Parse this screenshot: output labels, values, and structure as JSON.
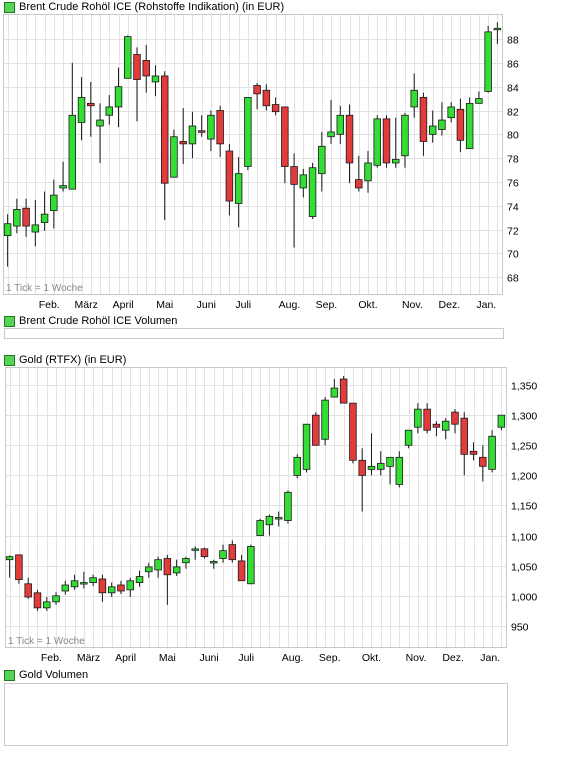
{
  "colors": {
    "up": "#33dd33",
    "down": "#e23b3b",
    "outline": "#1a1a1a",
    "grid": "#e2e2e2"
  },
  "chart_data": [
    {
      "type": "candlestick",
      "title": "Brent Crude Rohöl ICE (Rohstoffe Indikation) (in EUR)",
      "note": "1 Tick = 1 Woche",
      "yticks": [
        68,
        70,
        72,
        74,
        76,
        78,
        80,
        82,
        84,
        86,
        88
      ],
      "ylim": [
        66.6,
        90.1
      ],
      "x_labels": [
        "Feb.",
        "März",
        "April",
        "Mai",
        "Juni",
        "Juli",
        "Aug.",
        "Sep.",
        "Okt.",
        "Nov.",
        "Dez.",
        "Jan."
      ],
      "x_label_positions": [
        5,
        9,
        13,
        17.5,
        22,
        26,
        31,
        35,
        39.5,
        44.3,
        48.3,
        52.3
      ],
      "candles": [
        {
          "o": 71.5,
          "h": 73.3,
          "l": 68.9,
          "c": 72.5
        },
        {
          "o": 72.3,
          "h": 74.6,
          "l": 71.7,
          "c": 73.7
        },
        {
          "o": 73.8,
          "h": 74.6,
          "l": 71.4,
          "c": 72.3
        },
        {
          "o": 71.8,
          "h": 74.5,
          "l": 70.6,
          "c": 72.4
        },
        {
          "o": 72.6,
          "h": 75.2,
          "l": 71.9,
          "c": 73.3
        },
        {
          "o": 73.6,
          "h": 76.2,
          "l": 72.1,
          "c": 74.9
        },
        {
          "o": 75.5,
          "h": 77.7,
          "l": 75.2,
          "c": 75.7
        },
        {
          "o": 75.4,
          "h": 86.0,
          "l": 75.4,
          "c": 81.6
        },
        {
          "o": 81.0,
          "h": 84.8,
          "l": 79.5,
          "c": 83.1
        },
        {
          "o": 82.6,
          "h": 84.4,
          "l": 79.8,
          "c": 82.4
        },
        {
          "o": 80.7,
          "h": 82.6,
          "l": 77.6,
          "c": 81.2
        },
        {
          "o": 81.6,
          "h": 83.3,
          "l": 80.8,
          "c": 82.3
        },
        {
          "o": 82.3,
          "h": 85.6,
          "l": 80.6,
          "c": 84.0
        },
        {
          "o": 84.7,
          "h": 88.3,
          "l": 84.7,
          "c": 88.2
        },
        {
          "o": 86.7,
          "h": 87.3,
          "l": 81.1,
          "c": 84.6
        },
        {
          "o": 86.2,
          "h": 87.5,
          "l": 83.5,
          "c": 84.9
        },
        {
          "o": 84.4,
          "h": 85.8,
          "l": 83.2,
          "c": 84.9
        },
        {
          "o": 84.9,
          "h": 85.3,
          "l": 72.8,
          "c": 75.9
        },
        {
          "o": 76.4,
          "h": 80.4,
          "l": 76.4,
          "c": 79.8
        },
        {
          "o": 79.4,
          "h": 82.2,
          "l": 77.5,
          "c": 79.2
        },
        {
          "o": 79.2,
          "h": 81.9,
          "l": 78.0,
          "c": 80.7
        },
        {
          "o": 80.3,
          "h": 81.6,
          "l": 79.8,
          "c": 80.2
        },
        {
          "o": 79.6,
          "h": 82.0,
          "l": 78.6,
          "c": 81.6
        },
        {
          "o": 82.0,
          "h": 82.4,
          "l": 78.1,
          "c": 79.2
        },
        {
          "o": 78.6,
          "h": 79.2,
          "l": 73.2,
          "c": 74.4
        },
        {
          "o": 74.2,
          "h": 78.1,
          "l": 72.2,
          "c": 76.7
        },
        {
          "o": 77.3,
          "h": 83.1,
          "l": 77.0,
          "c": 83.1
        },
        {
          "o": 84.1,
          "h": 84.3,
          "l": 82.1,
          "c": 83.4
        },
        {
          "o": 83.7,
          "h": 84.2,
          "l": 82.0,
          "c": 82.4
        },
        {
          "o": 82.5,
          "h": 83.1,
          "l": 81.6,
          "c": 81.9
        },
        {
          "o": 82.3,
          "h": 82.3,
          "l": 75.9,
          "c": 77.3
        },
        {
          "o": 77.3,
          "h": 78.4,
          "l": 70.5,
          "c": 75.8
        },
        {
          "o": 75.5,
          "h": 77.1,
          "l": 74.7,
          "c": 76.6
        },
        {
          "o": 73.1,
          "h": 77.6,
          "l": 72.9,
          "c": 77.2
        },
        {
          "o": 76.7,
          "h": 80.2,
          "l": 75.2,
          "c": 79.0
        },
        {
          "o": 79.8,
          "h": 82.9,
          "l": 79.2,
          "c": 80.2
        },
        {
          "o": 80.0,
          "h": 82.4,
          "l": 79.2,
          "c": 81.6
        },
        {
          "o": 81.6,
          "h": 82.5,
          "l": 75.9,
          "c": 77.6
        },
        {
          "o": 76.2,
          "h": 78.2,
          "l": 75.2,
          "c": 75.5
        },
        {
          "o": 76.1,
          "h": 78.6,
          "l": 75.1,
          "c": 77.6
        },
        {
          "o": 77.4,
          "h": 81.6,
          "l": 77.2,
          "c": 81.3
        },
        {
          "o": 81.3,
          "h": 81.6,
          "l": 77.2,
          "c": 77.6
        },
        {
          "o": 77.6,
          "h": 81.4,
          "l": 77.2,
          "c": 77.9
        },
        {
          "o": 78.2,
          "h": 81.8,
          "l": 77.2,
          "c": 81.6
        },
        {
          "o": 82.3,
          "h": 85.1,
          "l": 81.4,
          "c": 83.7
        },
        {
          "o": 83.1,
          "h": 83.5,
          "l": 78.2,
          "c": 79.4
        },
        {
          "o": 80.0,
          "h": 82.0,
          "l": 79.3,
          "c": 80.7
        },
        {
          "o": 80.4,
          "h": 82.7,
          "l": 79.9,
          "c": 81.2
        },
        {
          "o": 81.4,
          "h": 82.7,
          "l": 81.0,
          "c": 82.3
        },
        {
          "o": 82.1,
          "h": 83.0,
          "l": 78.5,
          "c": 79.5
        },
        {
          "o": 78.8,
          "h": 83.1,
          "l": 78.8,
          "c": 82.6
        },
        {
          "o": 82.6,
          "h": 83.6,
          "l": 82.6,
          "c": 83.0
        },
        {
          "o": 83.6,
          "h": 89.1,
          "l": 83.5,
          "c": 88.6
        },
        {
          "o": 88.9,
          "h": 89.4,
          "l": 87.6,
          "c": 88.9
        }
      ]
    },
    {
      "type": "bar",
      "title": "Brent Crude Rohöl ICE Volumen",
      "values": []
    },
    {
      "type": "candlestick",
      "title": "Gold (RTFX) (in EUR)",
      "note": "1 Tick = 1 Woche",
      "yticks": [
        950,
        1000,
        1050,
        1100,
        1150,
        1200,
        1250,
        1300,
        1350
      ],
      "ylim": [
        915,
        1380
      ],
      "x_labels": [
        "Feb.",
        "März",
        "April",
        "Mai",
        "Juni",
        "Juli",
        "Aug.",
        "Sep.",
        "Okt.",
        "Nov.",
        "Dez.",
        "Jan."
      ],
      "x_label_positions": [
        5,
        9,
        13,
        17.5,
        22,
        26,
        31,
        35,
        39.5,
        44.3,
        48.3,
        52.3
      ],
      "candles": [
        {
          "o": 1060,
          "h": 1067,
          "l": 1030,
          "c": 1065
        },
        {
          "o": 1068,
          "h": 1068,
          "l": 1020,
          "c": 1027
        },
        {
          "o": 1020,
          "h": 1030,
          "l": 995,
          "c": 998
        },
        {
          "o": 1005,
          "h": 1010,
          "l": 975,
          "c": 980
        },
        {
          "o": 980,
          "h": 998,
          "l": 975,
          "c": 990
        },
        {
          "o": 990,
          "h": 1006,
          "l": 985,
          "c": 1000
        },
        {
          "o": 1008,
          "h": 1025,
          "l": 1002,
          "c": 1018
        },
        {
          "o": 1015,
          "h": 1035,
          "l": 1010,
          "c": 1025
        },
        {
          "o": 1020,
          "h": 1040,
          "l": 1012,
          "c": 1022
        },
        {
          "o": 1022,
          "h": 1035,
          "l": 1016,
          "c": 1030
        },
        {
          "o": 1028,
          "h": 1035,
          "l": 990,
          "c": 1005
        },
        {
          "o": 1005,
          "h": 1022,
          "l": 998,
          "c": 1015
        },
        {
          "o": 1018,
          "h": 1025,
          "l": 1003,
          "c": 1008
        },
        {
          "o": 1010,
          "h": 1030,
          "l": 998,
          "c": 1025
        },
        {
          "o": 1022,
          "h": 1042,
          "l": 1015,
          "c": 1032
        },
        {
          "o": 1040,
          "h": 1055,
          "l": 1030,
          "c": 1048
        },
        {
          "o": 1043,
          "h": 1065,
          "l": 1030,
          "c": 1060
        },
        {
          "o": 1062,
          "h": 1068,
          "l": 985,
          "c": 1035
        },
        {
          "o": 1038,
          "h": 1060,
          "l": 1033,
          "c": 1048
        },
        {
          "o": 1055,
          "h": 1065,
          "l": 1045,
          "c": 1062
        },
        {
          "o": 1078,
          "h": 1082,
          "l": 1060,
          "c": 1078
        },
        {
          "o": 1078,
          "h": 1080,
          "l": 1062,
          "c": 1065
        },
        {
          "o": 1057,
          "h": 1060,
          "l": 1045,
          "c": 1057
        },
        {
          "o": 1062,
          "h": 1085,
          "l": 1055,
          "c": 1075
        },
        {
          "o": 1085,
          "h": 1092,
          "l": 1055,
          "c": 1060
        },
        {
          "o": 1058,
          "h": 1068,
          "l": 1025,
          "c": 1025
        },
        {
          "o": 1020,
          "h": 1085,
          "l": 1020,
          "c": 1082
        },
        {
          "o": 1100,
          "h": 1128,
          "l": 1100,
          "c": 1125
        },
        {
          "o": 1118,
          "h": 1135,
          "l": 1100,
          "c": 1132
        },
        {
          "o": 1128,
          "h": 1140,
          "l": 1115,
          "c": 1130
        },
        {
          "o": 1125,
          "h": 1175,
          "l": 1120,
          "c": 1172
        },
        {
          "o": 1200,
          "h": 1235,
          "l": 1195,
          "c": 1230
        },
        {
          "o": 1210,
          "h": 1285,
          "l": 1205,
          "c": 1285
        },
        {
          "o": 1300,
          "h": 1305,
          "l": 1250,
          "c": 1250
        },
        {
          "o": 1260,
          "h": 1330,
          "l": 1250,
          "c": 1325
        },
        {
          "o": 1330,
          "h": 1360,
          "l": 1330,
          "c": 1345
        },
        {
          "o": 1360,
          "h": 1365,
          "l": 1320,
          "c": 1320
        },
        {
          "o": 1320,
          "h": 1320,
          "l": 1220,
          "c": 1225
        },
        {
          "o": 1225,
          "h": 1245,
          "l": 1140,
          "c": 1200
        },
        {
          "o": 1210,
          "h": 1270,
          "l": 1200,
          "c": 1215
        },
        {
          "o": 1210,
          "h": 1240,
          "l": 1200,
          "c": 1220
        },
        {
          "o": 1215,
          "h": 1230,
          "l": 1185,
          "c": 1230
        },
        {
          "o": 1185,
          "h": 1240,
          "l": 1180,
          "c": 1230
        },
        {
          "o": 1250,
          "h": 1275,
          "l": 1245,
          "c": 1275
        },
        {
          "o": 1280,
          "h": 1320,
          "l": 1270,
          "c": 1310
        },
        {
          "o": 1310,
          "h": 1320,
          "l": 1270,
          "c": 1275
        },
        {
          "o": 1285,
          "h": 1290,
          "l": 1265,
          "c": 1280
        },
        {
          "o": 1275,
          "h": 1295,
          "l": 1260,
          "c": 1290
        },
        {
          "o": 1305,
          "h": 1310,
          "l": 1270,
          "c": 1285
        },
        {
          "o": 1295,
          "h": 1305,
          "l": 1200,
          "c": 1235
        },
        {
          "o": 1240,
          "h": 1255,
          "l": 1225,
          "c": 1235
        },
        {
          "o": 1230,
          "h": 1250,
          "l": 1190,
          "c": 1215
        },
        {
          "o": 1210,
          "h": 1275,
          "l": 1205,
          "c": 1265
        },
        {
          "o": 1280,
          "h": 1300,
          "l": 1275,
          "c": 1300
        }
      ]
    },
    {
      "type": "bar",
      "title": "Gold Volumen",
      "values": []
    }
  ]
}
